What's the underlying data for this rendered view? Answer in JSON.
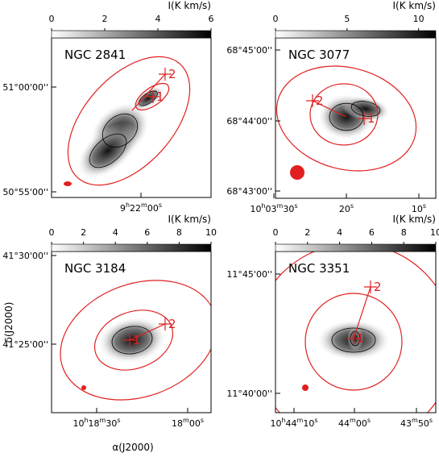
{
  "panels": [
    {
      "name": "NGC 2841",
      "colorbar": {
        "label": "I(K km/s)",
        "lim": [
          0,
          6
        ],
        "ticks": [
          0,
          2,
          4,
          6
        ]
      },
      "yticks": [
        "51°00'00''",
        "50°55'00''"
      ],
      "xticks": [
        "9h22m00s"
      ],
      "markers": [
        "1",
        "2"
      ]
    },
    {
      "name": "NGC 3077",
      "colorbar": {
        "label": "I(K km/s)",
        "lim": [
          0,
          11.2
        ],
        "ticks": [
          0,
          5,
          10
        ]
      },
      "yticks": [
        "68°45'00''",
        "68°44'00''",
        "68°43'00''"
      ],
      "xticks": [
        "10h03m30s",
        "20s",
        "10s"
      ],
      "markers": [
        "1",
        "2"
      ]
    },
    {
      "name": "NGC 3184",
      "colorbar": {
        "label": "I(K km/s)",
        "lim": [
          0,
          10
        ],
        "ticks": [
          0,
          2,
          4,
          6,
          8,
          10
        ]
      },
      "yticks": [
        "41°30'00''",
        "41°25'00''"
      ],
      "xticks": [
        "10h18m30s",
        "18m00s"
      ],
      "markers": [
        "1",
        "2"
      ]
    },
    {
      "name": "NGC 3351",
      "colorbar": {
        "label": "I(K km/s)",
        "lim": [
          0,
          10
        ],
        "ticks": [
          0,
          2,
          4,
          6,
          8,
          10
        ]
      },
      "yticks": [
        "11°45'00''",
        "11°40'00''"
      ],
      "xticks": [
        "10h44m10s",
        "44m00s",
        "43m50s"
      ],
      "markers": [
        "1",
        "2"
      ]
    }
  ],
  "axes": {
    "ylabel": "δ(J2000)",
    "xlabel": "α(J2000)"
  }
}
